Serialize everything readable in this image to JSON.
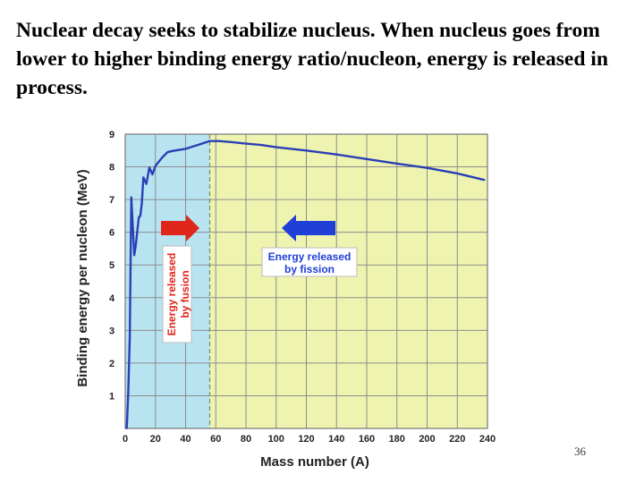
{
  "slide": {
    "title": "Nuclear decay seeks to stabilize nucleus. When nucleus goes from lower to higher binding energy ratio/nucleon, energy is released in process.",
    "page_number": "36"
  },
  "chart_data": {
    "type": "line",
    "xlabel": "Mass number (A)",
    "ylabel": "Binding energy per nucleon (MeV)",
    "xlim": [
      0,
      240
    ],
    "ylim": [
      0,
      9
    ],
    "x_ticks": [
      0,
      20,
      40,
      60,
      80,
      100,
      120,
      140,
      160,
      180,
      200,
      220,
      240
    ],
    "y_ticks": [
      1,
      2,
      3,
      4,
      5,
      6,
      7,
      8,
      9
    ],
    "grid": true,
    "fusion_boundary_x": 56,
    "series": [
      {
        "x": [
          1,
          2,
          3,
          4,
          6,
          7,
          9,
          10,
          11,
          12,
          14,
          16,
          18,
          20,
          24,
          28,
          32,
          40,
          48,
          56,
          62,
          70,
          80,
          90,
          100,
          120,
          140,
          160,
          180,
          200,
          220,
          238
        ],
        "y": [
          0.0,
          1.1,
          2.8,
          7.07,
          5.3,
          5.6,
          6.46,
          6.5,
          6.9,
          7.68,
          7.48,
          7.98,
          7.77,
          8.03,
          8.26,
          8.45,
          8.49,
          8.55,
          8.67,
          8.79,
          8.79,
          8.76,
          8.71,
          8.67,
          8.6,
          8.5,
          8.38,
          8.24,
          8.1,
          7.97,
          7.8,
          7.6
        ],
        "color": "#2b3fb5"
      }
    ],
    "regions": [
      {
        "label": "fusion",
        "x_range": [
          0,
          56
        ],
        "color": "#b8e4f2"
      },
      {
        "label": "fission",
        "x_range": [
          56,
          240
        ],
        "color": "#eef4b0"
      }
    ],
    "annotations": {
      "fusion_label_line1": "Energy released",
      "fusion_label_line2": "by fusion",
      "fission_label_line1": "Energy released",
      "fission_label_line2": "by fission"
    },
    "arrows": [
      {
        "direction": "right",
        "color": "#e0261b",
        "meaning": "fusion"
      },
      {
        "direction": "left",
        "color": "#1f3fd6",
        "meaning": "fission"
      }
    ]
  }
}
